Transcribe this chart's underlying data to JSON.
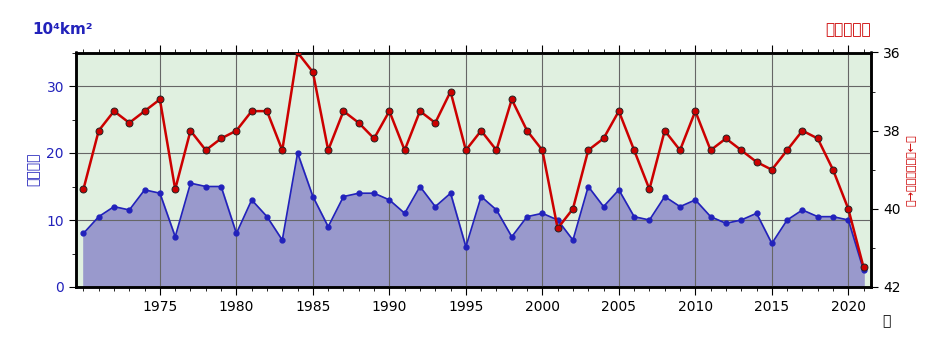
{
  "years": [
    1970,
    1971,
    1972,
    1973,
    1974,
    1975,
    1976,
    1977,
    1978,
    1979,
    1980,
    1981,
    1982,
    1983,
    1984,
    1985,
    1986,
    1987,
    1988,
    1989,
    1990,
    1991,
    1992,
    1993,
    1994,
    1995,
    1996,
    1997,
    1998,
    1999,
    2000,
    2001,
    2002,
    2003,
    2004,
    2005,
    2006,
    2007,
    2008,
    2009,
    2010,
    2011,
    2012,
    2013,
    2014,
    2015,
    2016,
    2017,
    2018,
    2019,
    2020,
    2021
  ],
  "area": [
    8.0,
    10.5,
    12.0,
    11.5,
    14.5,
    14.0,
    7.5,
    15.5,
    15.0,
    15.0,
    8.0,
    13.0,
    10.5,
    7.0,
    20.0,
    13.5,
    9.0,
    13.5,
    14.0,
    14.0,
    13.0,
    11.0,
    15.0,
    12.0,
    14.0,
    6.0,
    13.5,
    11.5,
    7.5,
    10.5,
    11.0,
    10.0,
    7.0,
    15.0,
    12.0,
    14.5,
    10.5,
    10.0,
    13.5,
    12.0,
    13.0,
    10.5,
    9.5,
    10.0,
    11.0,
    6.5,
    10.0,
    11.5,
    10.5,
    10.5,
    10.0,
    2.5
  ],
  "latitude": [
    39.5,
    38.0,
    37.5,
    37.8,
    37.5,
    37.2,
    39.5,
    38.0,
    38.5,
    38.2,
    38.0,
    37.5,
    37.5,
    38.5,
    36.0,
    36.5,
    38.5,
    37.5,
    37.8,
    38.2,
    37.5,
    38.5,
    37.5,
    37.8,
    37.0,
    38.5,
    38.0,
    38.5,
    37.2,
    38.0,
    38.5,
    40.5,
    40.0,
    38.5,
    38.2,
    37.5,
    38.5,
    39.5,
    38.0,
    38.5,
    37.5,
    38.5,
    38.2,
    38.5,
    38.8,
    39.0,
    38.5,
    38.0,
    38.2,
    39.0,
    40.0,
    41.5
  ],
  "left_label": "10⁴km²",
  "right_label": "北緯（度）",
  "y_label_left": "平均面積",
  "y_label_right": "南→平均南限位置←北",
  "x_label": "年",
  "ylim_left": [
    0,
    35
  ],
  "ylim_right_top": 36,
  "ylim_right_bottom": 42,
  "yticks_left": [
    0,
    10,
    20,
    30
  ],
  "yticks_right": [
    36,
    38,
    40,
    42
  ],
  "xtick_labels": [
    1975,
    1980,
    1985,
    1990,
    1995,
    2000,
    2005,
    2010,
    2015,
    2020
  ],
  "bg_color_green": "#e0f0e0",
  "area_fill_color": "#9999cc",
  "area_line_color": "#2222bb",
  "lat_line_color": "#cc0000",
  "grid_color": "#666666"
}
